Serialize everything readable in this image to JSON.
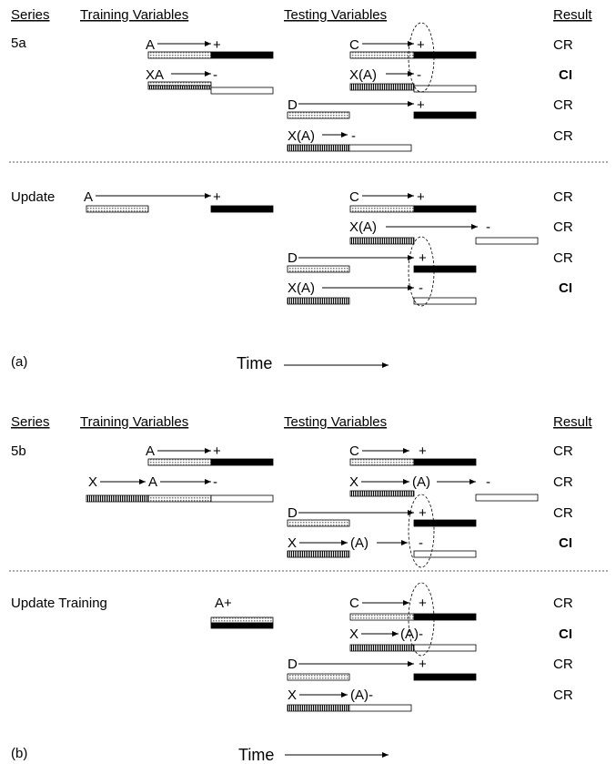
{
  "headers": {
    "series": "Series",
    "training": "Training Variables",
    "testing": "Testing Variables",
    "result": "Result"
  },
  "panel_a": {
    "series_label": "5a",
    "update_label": "Update",
    "caption": "(a)",
    "time_label": "Time",
    "main_rows": [
      {
        "train": "A",
        "train_sign": "+",
        "test": "C",
        "test_sign": "+",
        "result": "CR",
        "bold": false
      },
      {
        "train": "XA",
        "train_sign": "-",
        "test": "X(A)",
        "test_sign": "-",
        "result": "CI",
        "bold": true
      },
      {
        "test": "D",
        "test_sign": "+",
        "result": "CR",
        "bold": false
      },
      {
        "test": "X(A)",
        "test_sign": "-",
        "result": "CR",
        "bold": false
      }
    ],
    "update_rows": [
      {
        "train": "A",
        "train_sign": "+",
        "test": "C",
        "test_sign": "+",
        "result": "CR",
        "bold": false
      },
      {
        "test": "X(A)",
        "test_sign": "-",
        "result": "CR",
        "bold": false
      },
      {
        "test": "D",
        "test_sign": "+",
        "result": "CR",
        "bold": false
      },
      {
        "test": "X(A)",
        "test_sign": "-",
        "result": "CI",
        "bold": true
      }
    ]
  },
  "panel_b": {
    "series_label": "5b",
    "update_label": "Update Training",
    "caption": "(b)",
    "time_label": "Time",
    "main_rows": [
      {
        "train": "A",
        "train_sign": "+",
        "test": "C",
        "test_sign": "+",
        "result": "CR",
        "bold": false
      },
      {
        "train_x": "X",
        "train": "A",
        "train_sign": "-",
        "test_x": "X",
        "test": "(A)",
        "test_sign": "-",
        "result": "CR",
        "bold": false
      },
      {
        "test": "D",
        "test_sign": "+",
        "result": "CR",
        "bold": false
      },
      {
        "test_x": "X",
        "test": "(A)",
        "test_sign": "-",
        "result": "CI",
        "bold": true
      }
    ],
    "update_rows": [
      {
        "train": "A+",
        "test": "C",
        "test_sign": "+",
        "result": "CR",
        "bold": false
      },
      {
        "test_x": "X",
        "test": "(A)-",
        "result": "CI",
        "bold": true
      },
      {
        "test": "D",
        "test_sign": "+",
        "result": "CR",
        "bold": false
      },
      {
        "test_x": "X",
        "test": "(A)-",
        "result": "CR",
        "bold": false
      }
    ]
  },
  "colors": {
    "line": "#000000",
    "stipple": "#c8c8c8",
    "dashed_divider": "#555555"
  }
}
